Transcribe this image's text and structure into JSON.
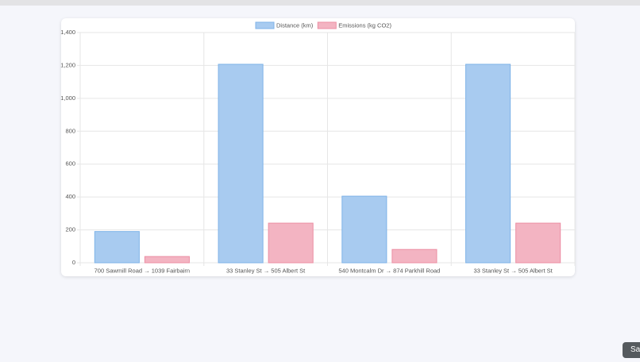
{
  "chart_data": {
    "type": "bar",
    "categories": [
      "700 Sawmill Road → 1039 Fairbairn",
      "33 Stanley St → 505 Albert St",
      "540 Montcalm Dr → 874 Parkhill Road",
      "33 Stanley St → 505 Albert St"
    ],
    "series": [
      {
        "name": "Distance (km)",
        "color": "#a8cbf0",
        "border": "#7fb3e8",
        "values": [
          190,
          1207,
          405,
          1207
        ]
      },
      {
        "name": "Emissions (kg CO2)",
        "color": "#f3b4c2",
        "border": "#ec8fa4",
        "values": [
          38,
          241,
          81,
          241
        ]
      }
    ],
    "ylim": [
      0,
      1400
    ],
    "yticks": [
      0,
      200,
      400,
      600,
      800,
      {
        "value": 1000,
        "label": "1,000"
      },
      {
        "value": 1200,
        "label": "1,200"
      },
      {
        "value": 1400,
        "label": "1,400"
      }
    ],
    "grid": true,
    "legend": "top"
  },
  "ui": {
    "floating_button": "Sa"
  }
}
